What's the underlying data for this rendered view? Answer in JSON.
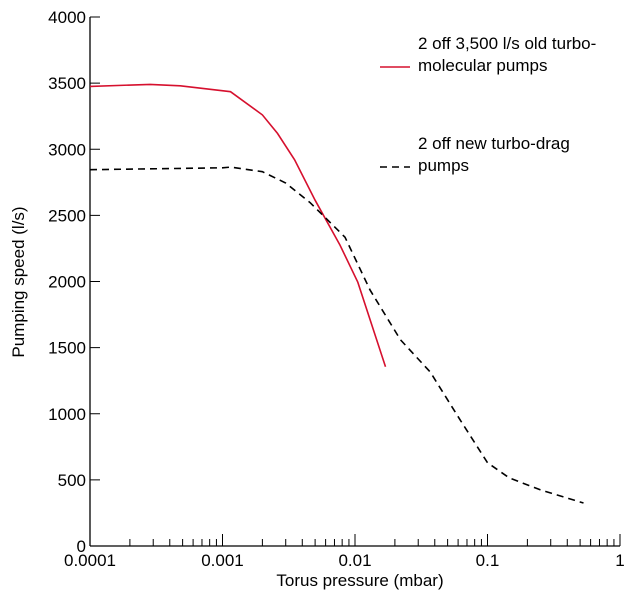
{
  "chart_data": {
    "type": "line",
    "xlabel": "Torus pressure (mbar)",
    "ylabel": "Pumping speed (l/s)",
    "xscale": "log",
    "xlim": [
      0.0001,
      1
    ],
    "xticks": [
      0.0001,
      0.001,
      0.01,
      0.1,
      1
    ],
    "ylim": [
      0,
      4000
    ],
    "yticks": [
      0,
      500,
      1000,
      1500,
      2000,
      2500,
      3000,
      3500,
      4000
    ],
    "series": [
      {
        "name": "2 off 3,500 l/s old turbo-molecular pumps",
        "color": "#d6102e",
        "dash": false,
        "x": [
          0.0001,
          0.000284,
          0.00048,
          0.00115,
          0.002,
          0.0026,
          0.0035,
          0.005,
          0.0077,
          0.0105,
          0.017
        ],
        "values": [
          3475,
          3490,
          3480,
          3435,
          3260,
          3120,
          2920,
          2615,
          2275,
          1995,
          1355
        ]
      },
      {
        "name": "2 off new turbo-drag pumps",
        "color": "#000000",
        "dash": true,
        "x": [
          0.0001,
          0.001,
          0.00115,
          0.002,
          0.003,
          0.0046,
          0.0084,
          0.013,
          0.022,
          0.037,
          0.062,
          0.1,
          0.146,
          0.25,
          0.53
        ],
        "values": [
          2845,
          2860,
          2865,
          2830,
          2745,
          2595,
          2335,
          1935,
          1560,
          1315,
          955,
          630,
          515,
          425,
          325
        ]
      }
    ]
  }
}
